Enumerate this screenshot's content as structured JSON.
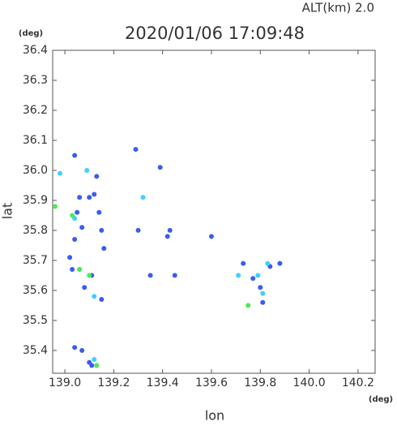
{
  "chart_data": {
    "type": "scatter",
    "title": "2020/01/06 17:09:48",
    "subtitle": "ALT(km)  2.0",
    "x_label": "lon",
    "y_label": "lat",
    "x_unit": "(deg)",
    "y_unit": "(deg)",
    "xlim": [
      138.95,
      140.27
    ],
    "ylim": [
      35.324,
      36.4
    ],
    "xticks": [
      {
        "value": 139,
        "label": "139.0"
      },
      139.2,
      139.4,
      139.6,
      139.8,
      {
        "value": 140,
        "label": "140.0"
      },
      140.2
    ],
    "yticks": [
      35.4,
      35.5,
      35.6,
      35.7,
      35.8,
      35.9,
      {
        "value": 36,
        "label": "36.0"
      },
      36.1,
      36.2,
      36.3,
      36.4
    ],
    "series": [
      {
        "color": "#3b5cf0",
        "x": [
          139.04,
          139.06,
          139.1,
          139.13,
          139.12,
          139.05,
          139.04,
          139.07,
          139.14,
          139.16,
          139.02,
          139.03,
          139.06,
          139.11,
          139.08,
          139.15,
          139.35,
          139.04,
          139.07,
          139.1,
          139.11,
          139.29,
          139.39,
          139.42,
          139.43,
          139.6,
          139.73,
          139.77,
          139.84,
          139.88,
          139.8,
          139.81,
          139.15,
          139.3,
          139.45
        ],
        "y": [
          36.05,
          35.91,
          35.91,
          35.98,
          35.92,
          35.86,
          35.77,
          35.81,
          35.86,
          35.74,
          35.71,
          35.67,
          35.67,
          35.65,
          35.61,
          35.57,
          35.65,
          35.41,
          35.4,
          35.36,
          35.35,
          36.07,
          36.01,
          35.78,
          35.8,
          35.78,
          35.69,
          35.64,
          35.68,
          35.69,
          35.61,
          35.56,
          35.8,
          35.8,
          35.65
        ]
      },
      {
        "color": "#3fd0ff",
        "x": [
          138.98,
          139.09,
          139.32,
          139.04,
          139.12,
          139.79,
          139.71,
          139.81,
          139.83,
          139.12
        ],
        "y": [
          35.99,
          36.0,
          35.91,
          35.84,
          35.58,
          35.65,
          35.65,
          35.59,
          35.69,
          35.37
        ]
      },
      {
        "color": "#4fe85a",
        "x": [
          138.96,
          139.03,
          139.06,
          139.13,
          139.75,
          139.1
        ],
        "y": [
          35.88,
          35.85,
          35.67,
          35.35,
          35.55,
          35.65
        ]
      }
    ]
  }
}
